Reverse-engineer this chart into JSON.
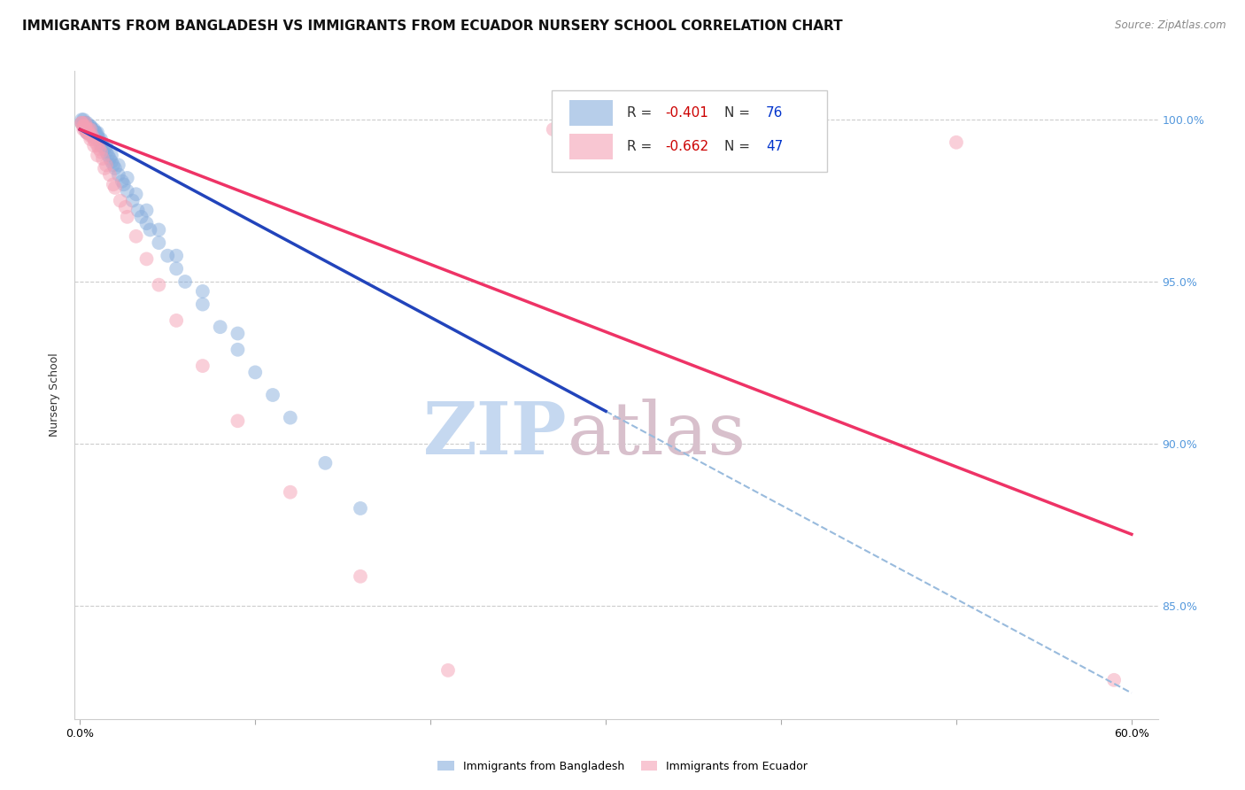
{
  "title": "IMMIGRANTS FROM BANGLADESH VS IMMIGRANTS FROM ECUADOR NURSERY SCHOOL CORRELATION CHART",
  "source": "Source: ZipAtlas.com",
  "ylabel": "Nursery School",
  "xlim": [
    -0.003,
    0.615
  ],
  "ylim": [
    0.815,
    1.015
  ],
  "y_tick_values": [
    1.0,
    0.95,
    0.9,
    0.85
  ],
  "y_tick_labels": [
    "100.0%",
    "95.0%",
    "90.0%",
    "85.0%"
  ],
  "legend_r1": "-0.401",
  "legend_n1": "76",
  "legend_r2": "-0.662",
  "legend_n2": "47",
  "color_bangladesh": "#88aedd",
  "color_ecuador": "#f4a0b5",
  "color_line_bangladesh": "#2244bb",
  "color_line_ecuador": "#ee3366",
  "color_line_dashed": "#99bbdd",
  "color_right_axis": "#5599dd",
  "background_color": "#ffffff",
  "grid_color": "#cccccc",
  "watermark_ZIP_color": "#c5d8f0",
  "watermark_atlas_color": "#d8c0cc",
  "title_fontsize": 11,
  "axis_label_fontsize": 9,
  "tick_fontsize": 9,
  "r_color": "#cc0000",
  "n_color": "#0033cc",
  "line_b_x0": 0.0,
  "line_b_y0": 0.997,
  "line_b_x1": 0.3,
  "line_b_y1": 0.91,
  "line_e_x0": 0.0,
  "line_e_y0": 0.997,
  "line_e_x1": 0.6,
  "line_e_y1": 0.872,
  "line_d_x0": 0.3,
  "line_d_y0": 0.91,
  "line_d_x1": 0.6,
  "line_d_y1": 0.823,
  "bx": [
    0.001,
    0.002,
    0.002,
    0.003,
    0.003,
    0.003,
    0.004,
    0.004,
    0.004,
    0.005,
    0.005,
    0.006,
    0.006,
    0.006,
    0.007,
    0.007,
    0.007,
    0.008,
    0.008,
    0.009,
    0.009,
    0.01,
    0.01,
    0.011,
    0.012,
    0.012,
    0.013,
    0.014,
    0.015,
    0.016,
    0.017,
    0.018,
    0.019,
    0.02,
    0.022,
    0.024,
    0.025,
    0.027,
    0.03,
    0.033,
    0.035,
    0.038,
    0.04,
    0.045,
    0.05,
    0.055,
    0.06,
    0.07,
    0.08,
    0.09,
    0.1,
    0.11,
    0.12,
    0.14,
    0.16,
    0.001,
    0.002,
    0.003,
    0.004,
    0.005,
    0.006,
    0.007,
    0.008,
    0.009,
    0.01,
    0.012,
    0.015,
    0.018,
    0.022,
    0.027,
    0.032,
    0.038,
    0.045,
    0.055,
    0.07,
    0.09
  ],
  "by": [
    0.999,
    0.999,
    0.998,
    0.999,
    0.998,
    0.997,
    0.998,
    0.997,
    0.996,
    0.997,
    0.996,
    0.998,
    0.997,
    0.996,
    0.997,
    0.996,
    0.995,
    0.996,
    0.995,
    0.996,
    0.995,
    0.995,
    0.994,
    0.994,
    0.993,
    0.992,
    0.992,
    0.991,
    0.99,
    0.989,
    0.988,
    0.987,
    0.986,
    0.985,
    0.983,
    0.981,
    0.98,
    0.978,
    0.975,
    0.972,
    0.97,
    0.968,
    0.966,
    0.962,
    0.958,
    0.954,
    0.95,
    0.943,
    0.936,
    0.929,
    0.922,
    0.915,
    0.908,
    0.894,
    0.88,
    1.0,
    1.0,
    0.999,
    0.999,
    0.998,
    0.998,
    0.997,
    0.997,
    0.996,
    0.996,
    0.994,
    0.992,
    0.989,
    0.986,
    0.982,
    0.977,
    0.972,
    0.966,
    0.958,
    0.947,
    0.934
  ],
  "ex": [
    0.001,
    0.002,
    0.002,
    0.003,
    0.003,
    0.004,
    0.004,
    0.005,
    0.005,
    0.006,
    0.006,
    0.007,
    0.008,
    0.009,
    0.01,
    0.011,
    0.012,
    0.013,
    0.015,
    0.017,
    0.02,
    0.023,
    0.027,
    0.032,
    0.038,
    0.045,
    0.055,
    0.07,
    0.09,
    0.12,
    0.16,
    0.21,
    0.27,
    0.34,
    0.42,
    0.5,
    0.001,
    0.002,
    0.003,
    0.004,
    0.006,
    0.008,
    0.01,
    0.014,
    0.019,
    0.026,
    0.59
  ],
  "ey": [
    0.999,
    0.998,
    0.997,
    0.999,
    0.998,
    0.997,
    0.996,
    0.997,
    0.996,
    0.997,
    0.995,
    0.995,
    0.994,
    0.993,
    0.992,
    0.991,
    0.99,
    0.988,
    0.986,
    0.983,
    0.979,
    0.975,
    0.97,
    0.964,
    0.957,
    0.949,
    0.938,
    0.924,
    0.907,
    0.885,
    0.859,
    0.83,
    0.997,
    0.996,
    0.994,
    0.993,
    0.999,
    0.998,
    0.997,
    0.996,
    0.994,
    0.992,
    0.989,
    0.985,
    0.98,
    0.973,
    0.827
  ]
}
